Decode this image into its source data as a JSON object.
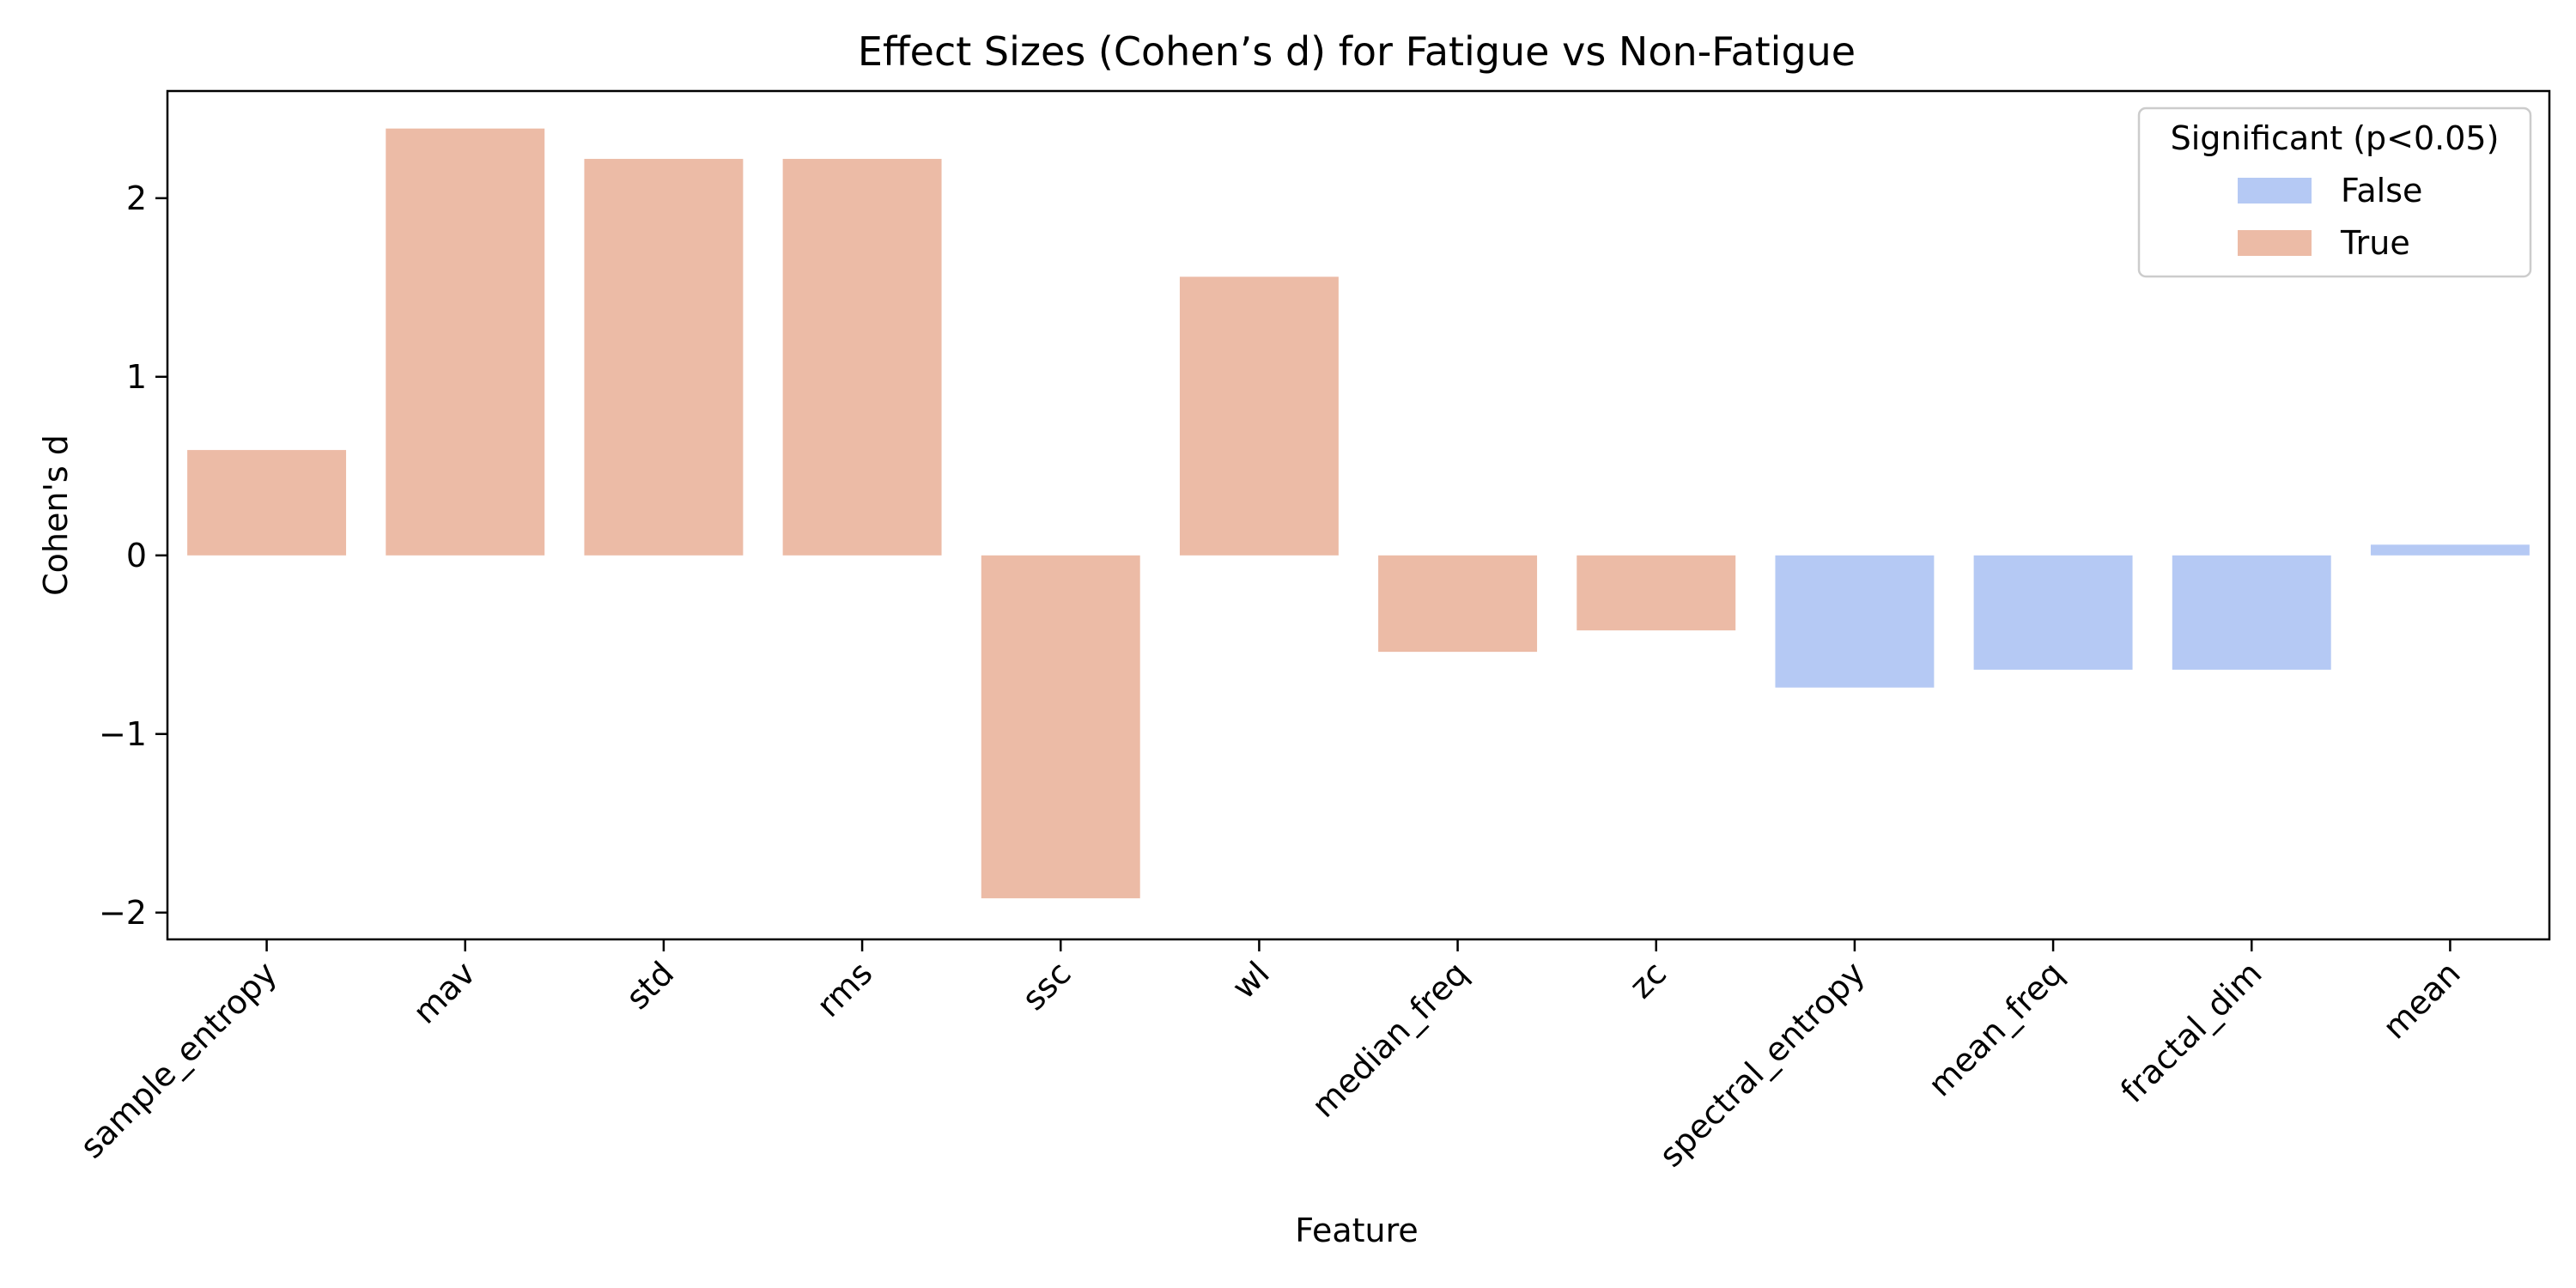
{
  "chart_data": {
    "type": "bar",
    "title": "Effect Sizes (Cohen’s d) for Fatigue vs Non-Fatigue",
    "xlabel": "Feature",
    "ylabel": "Cohen's d",
    "ylim": [
      -2.15,
      2.6
    ],
    "yticks": [
      -2,
      -1,
      0,
      1,
      2
    ],
    "ytick_labels": [
      "−2",
      "−1",
      "0",
      "1",
      "2"
    ],
    "grid": false,
    "categories": [
      "sample_entropy",
      "mav",
      "std",
      "rms",
      "ssc",
      "wl",
      "median_freq",
      "zc",
      "spectral_entropy",
      "mean_freq",
      "fractal_dim",
      "mean"
    ],
    "values": [
      0.59,
      2.39,
      2.22,
      2.22,
      -1.92,
      1.56,
      -0.54,
      -0.42,
      -0.74,
      -0.64,
      -0.64,
      0.06
    ],
    "significant": [
      true,
      true,
      true,
      true,
      true,
      true,
      true,
      true,
      false,
      false,
      false,
      false
    ],
    "legend": {
      "title": "Significant (p<0.05)",
      "placement": "upper right",
      "entries": [
        {
          "label": "False",
          "color": "#b5c9f4"
        },
        {
          "label": "True",
          "color": "#ecbba6"
        }
      ]
    },
    "colors": {
      "true": "#ecbba6",
      "false": "#b5c9f4"
    }
  }
}
